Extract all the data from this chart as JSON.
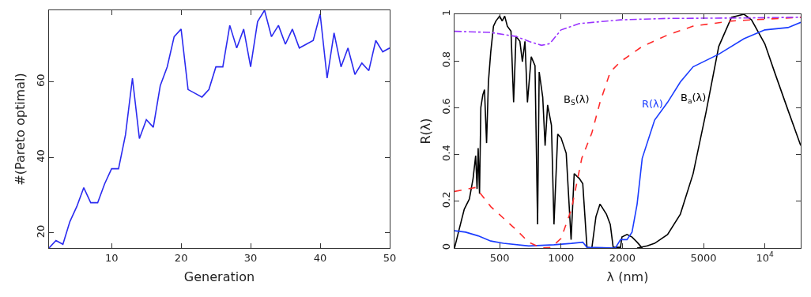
{
  "chart_data": [
    {
      "type": "line",
      "xlabel": "Generation",
      "ylabel": "#(Pareto optimal)",
      "x": [
        1,
        2,
        3,
        4,
        5,
        6,
        7,
        8,
        9,
        10,
        11,
        12,
        13,
        14,
        15,
        16,
        17,
        18,
        19,
        20,
        21,
        22,
        23,
        24,
        25,
        26,
        27,
        28,
        29,
        30,
        31,
        32,
        33,
        34,
        35,
        36,
        37,
        38,
        39,
        40,
        41,
        42,
        43,
        44,
        45,
        46,
        47,
        48,
        49,
        50
      ],
      "series": [
        {
          "color": "#2b2bf0",
          "values": [
            16,
            18,
            17,
            23,
            27,
            32,
            28,
            28,
            33,
            37,
            37,
            46,
            61,
            45,
            50,
            48,
            59,
            64,
            72,
            74,
            58,
            57,
            56,
            58,
            64,
            64,
            75,
            69,
            74,
            64,
            76,
            79,
            72,
            75,
            70,
            74,
            69,
            70,
            71,
            78,
            61,
            73,
            64,
            69,
            62,
            65,
            63,
            71,
            68,
            69
          ]
        }
      ],
      "xlim": [
        1,
        50
      ],
      "xticks": [
        10,
        20,
        30,
        40,
        50
      ],
      "ylim": [
        16,
        79
      ],
      "yticks": [
        20,
        40,
        60
      ],
      "grid": false,
      "legend": false,
      "marker": "none"
    },
    {
      "type": "line",
      "xlabel": "λ (nm)",
      "ylabel": "R(λ)",
      "log": "x",
      "grid": false,
      "legend": false,
      "marker": "none",
      "xlim": [
        300,
        15000
      ],
      "xticks": [
        500,
        1000,
        2000,
        5000,
        {
          "value": 10000,
          "label": "10$^{4}$"
        }
      ],
      "ylim": [
        0,
        1
      ],
      "yticks": [
        0,
        0.2,
        0.4,
        0.6,
        0.8,
        1
      ],
      "series": [
        {
          "name": "B$_{S}$(λ)",
          "color": "#000000",
          "line_style": "solid",
          "x": [
            300,
            316,
            335,
            355,
            370,
            381,
            387,
            392,
            398,
            404,
            413,
            421,
            431,
            440,
            452,
            466,
            479,
            500,
            514,
            529,
            545,
            568,
            585,
            601,
            628,
            646,
            665,
            684,
            714,
            745,
            767,
            781,
            813,
            835,
            859,
            897,
            923,
            963,
            1000,
            1060,
            1120,
            1160,
            1230,
            1278,
            1340,
            1416,
            1483,
            1553,
            1669,
            1744,
            1802,
            1958,
            1989,
            2106,
            2230,
            2362,
            2502
          ],
          "values": [
            0,
            0.079,
            0.166,
            0.21,
            0.297,
            0.395,
            0.253,
            0.427,
            0.232,
            0.601,
            0.655,
            0.677,
            0.449,
            0.71,
            0.84,
            0.949,
            0.971,
            0.992,
            0.971,
            0.992,
            0.949,
            0.927,
            0.623,
            0.905,
            0.884,
            0.797,
            0.884,
            0.623,
            0.818,
            0.78,
            0.101,
            0.753,
            0.645,
            0.438,
            0.612,
            0.525,
            0.101,
            0.487,
            0.471,
            0.405,
            0.036,
            0.318,
            0.297,
            0.275,
            0.003,
            0,
            0.134,
            0.188,
            0.145,
            0.101,
            0.003,
            0.003,
            0.047,
            0.058,
            0.047,
            0.025,
            0
          ]
        },
        {
          "name": "B$_{a}$(λ)",
          "color": "#000000",
          "line_style": "solid",
          "x": [
            2362,
            2648,
            2878,
            3332,
            3850,
            4447,
            5140,
            5940,
            6860,
            7900,
            8600,
            10000,
            11270,
            12990,
            15000
          ],
          "values": [
            0,
            0.009,
            0.02,
            0.058,
            0.145,
            0.318,
            0.579,
            0.862,
            0.987,
            1,
            0.976,
            0.873,
            0.742,
            0.59,
            0.438
          ]
        },
        {
          "name": "R(λ)",
          "color": "#1a3cff",
          "line_style": "solid",
          "x": [
            300,
            340,
            392,
            452,
            522,
            694,
            923,
            1125,
            1278,
            1340,
            1848,
            1958,
            2106,
            2230,
            2362,
            2502,
            2878,
            3332,
            3850,
            4447,
            5940,
            7900,
            10000,
            12990,
            15000
          ],
          "values": [
            0.074,
            0.068,
            0.052,
            0.03,
            0.02,
            0.009,
            0.014,
            0.02,
            0.025,
            0.003,
            0,
            0.036,
            0.036,
            0.068,
            0.188,
            0.384,
            0.547,
            0.623,
            0.71,
            0.775,
            0.829,
            0.895,
            0.933,
            0.943,
            0.965
          ]
        },
        {
          "color": "#ff2a2a",
          "line_style": "dashed",
          "x": [
            300,
            381,
            452,
            601,
            694,
            801,
            897,
            1000,
            1125,
            1264,
            1416,
            1553,
            1744,
            1958,
            2502,
            3332,
            4447,
            6860,
            15000
          ],
          "values": [
            0.242,
            0.259,
            0.177,
            0.079,
            0.025,
            0,
            0.003,
            0.041,
            0.166,
            0.384,
            0.492,
            0.623,
            0.753,
            0.797,
            0.862,
            0.911,
            0.949,
            0.971,
            0.987
          ]
        },
        {
          "color": "#9933ff",
          "line_style": "dashdot",
          "x": [
            300,
            452,
            601,
            694,
            801,
            880,
            1000,
            1230,
            1958,
            3332,
            7900,
            15000
          ],
          "values": [
            0.927,
            0.922,
            0.905,
            0.884,
            0.867,
            0.874,
            0.933,
            0.96,
            0.976,
            0.982,
            0.984,
            0.987
          ]
        }
      ]
    }
  ]
}
